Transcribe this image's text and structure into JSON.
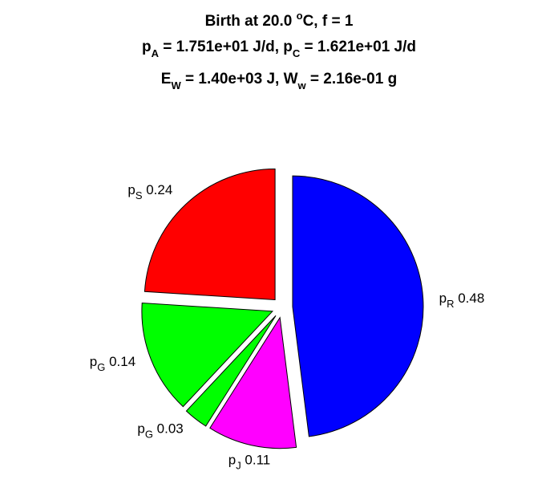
{
  "chart_data": {
    "type": "pie",
    "title": {
      "line1": {
        "pre": "Birth at 20.0 ",
        "sup": "o",
        "post": "C, f = 1"
      },
      "line2": [
        {
          "t": "p"
        },
        {
          "sub": "A"
        },
        {
          "t": " = 1.751e+01 J/d, p"
        },
        {
          "sub": "C"
        },
        {
          "t": " = 1.621e+01 J/d"
        }
      ],
      "line3": [
        {
          "t": "E"
        },
        {
          "sub": "W"
        },
        {
          "t": " = 1.40e+03 J, W"
        },
        {
          "sub": "w"
        },
        {
          "t": " = 2.16e-01 g"
        }
      ]
    },
    "slices": [
      {
        "name": "p",
        "sub": "R",
        "value": 0.48,
        "color": "#0000ff"
      },
      {
        "name": "p",
        "sub": "J",
        "value": 0.11,
        "color": "#ff00ff"
      },
      {
        "name": "p",
        "sub": "G",
        "value": 0.03,
        "color": "#00ff00"
      },
      {
        "name": "p",
        "sub": "G",
        "value": 0.14,
        "color": "#00ff00"
      },
      {
        "name": "p",
        "sub": "S",
        "value": 0.24,
        "color": "#ff0000"
      }
    ]
  }
}
